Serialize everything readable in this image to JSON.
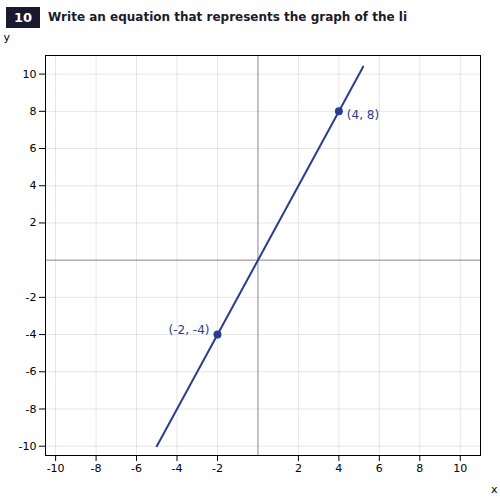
{
  "chart_data": {
    "type": "line",
    "question_number": "10",
    "title": "Write an equation that represents the graph of the li",
    "x_label": "x",
    "y_label": "y",
    "xlim": [
      -10.5,
      11
    ],
    "ylim": [
      -10.5,
      11
    ],
    "xticks": [
      -10,
      -8,
      -6,
      -4,
      -2,
      2,
      4,
      6,
      8,
      10
    ],
    "yticks": [
      -10,
      -8,
      -6,
      -4,
      -2,
      2,
      4,
      6,
      8,
      10
    ],
    "grid": true,
    "series": [
      {
        "type": "line",
        "color": "#2b3d8f",
        "x": [
          -5.0,
          5.2
        ],
        "values": [
          -10.0,
          10.4
        ]
      },
      {
        "type": "scatter",
        "color": "#2b3d8f",
        "x": [
          4,
          -2
        ],
        "values": [
          8,
          -4
        ],
        "value_labels": [
          "(4, 8)",
          "(-2, -4)"
        ],
        "data_labels": true
      }
    ]
  }
}
